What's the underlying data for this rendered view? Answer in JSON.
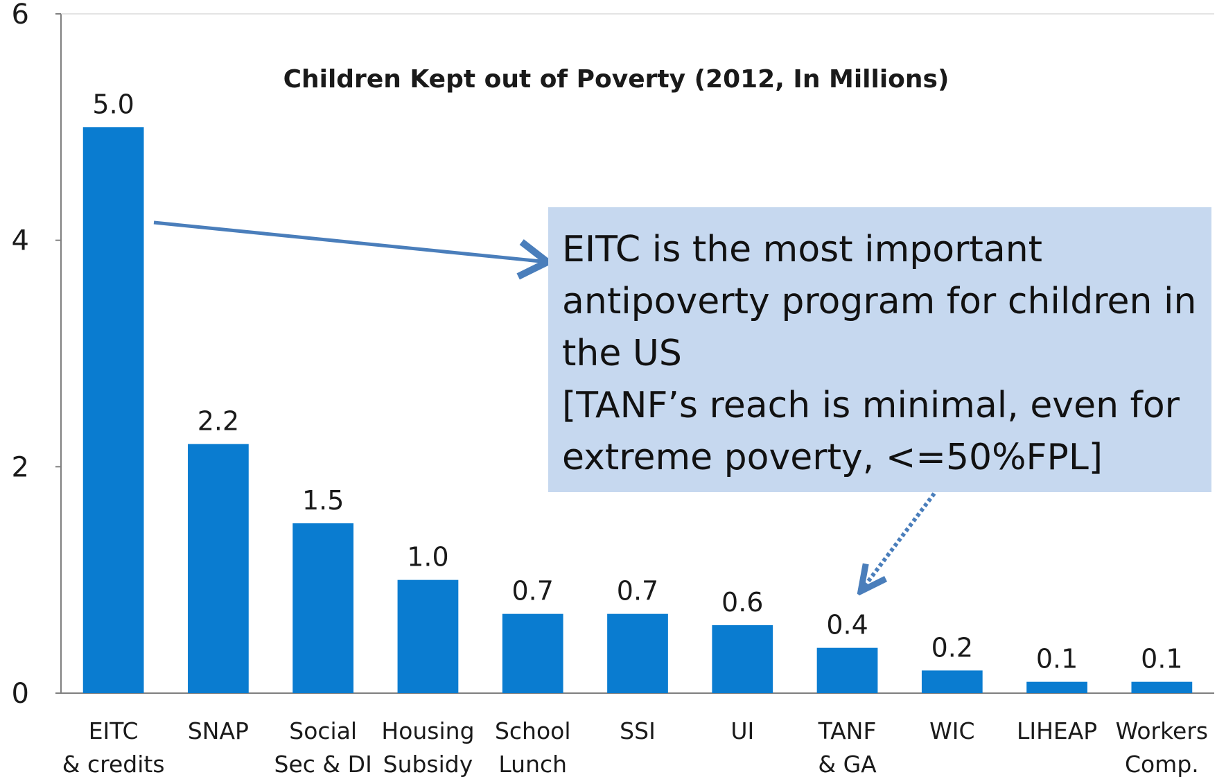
{
  "chart_data": {
    "type": "bar",
    "title": "Children Kept out of Poverty (2012, In Millions)",
    "categories": [
      [
        "EITC",
        "& credits"
      ],
      [
        "SNAP"
      ],
      [
        "Social",
        "Sec & DI"
      ],
      [
        "Housing",
        "Subsidy"
      ],
      [
        "School",
        "Lunch"
      ],
      [
        "SSI"
      ],
      [
        "UI"
      ],
      [
        "TANF",
        "& GA"
      ],
      [
        "WIC"
      ],
      [
        "LIHEAP"
      ],
      [
        "Workers",
        "Comp."
      ]
    ],
    "values": [
      5.0,
      2.2,
      1.5,
      1.0,
      0.7,
      0.7,
      0.6,
      0.4,
      0.2,
      0.1,
      0.1
    ],
    "data_labels": [
      "5.0",
      "2.2",
      "1.5",
      "1.0",
      "0.7",
      "0.7",
      "0.6",
      "0.4",
      "0.2",
      "0.1",
      "0.1"
    ],
    "ylim": [
      0,
      6
    ],
    "yticks": [
      0,
      2,
      4,
      6
    ],
    "bar_color": "#0a7cd0",
    "grid": false
  },
  "callout": {
    "text": "EITC is the most important\nantipoverty program for children in\nthe US\n[TANF’s reach is minimal, even for\nextreme poverty, <=50%FPL]",
    "background": "#c6d8ef",
    "arrow_color": "#4a7ebb"
  }
}
